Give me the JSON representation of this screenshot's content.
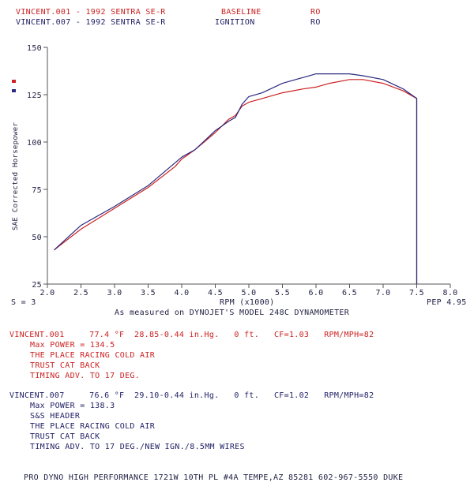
{
  "header": {
    "row1": {
      "file": "VINCENT.001 - 1992 SENTRA SE-R",
      "label": "BASELINE",
      "code": "RO"
    },
    "row2": {
      "file": "VINCENT.007 - 1992 SENTRA SE-R",
      "label": "IGNITION",
      "code": "RO"
    }
  },
  "chart_data": {
    "type": "line",
    "ylabel": "SAE Corrected Horsepower",
    "xlabel": "RPM (x1000)",
    "xlim": [
      2.0,
      8.0
    ],
    "ylim": [
      25,
      150
    ],
    "xticks": [
      "2.0",
      "2.5",
      "3.0",
      "3.5",
      "4.0",
      "4.5",
      "5.0",
      "5.5",
      "6.0",
      "6.5",
      "7.0",
      "7.5",
      "8.0"
    ],
    "yticks": [
      "150",
      "125",
      "100",
      "75",
      "50",
      "25"
    ],
    "smoothing": "S = 3",
    "pep": "PEP 4.95",
    "series": [
      {
        "color": "#cc2222",
        "x": [
          2.1,
          2.5,
          3.0,
          3.5,
          3.9,
          4.0,
          4.2,
          4.5,
          4.7,
          4.8,
          4.9,
          5.0,
          5.2,
          5.5,
          5.8,
          6.0,
          6.2,
          6.5,
          6.7,
          7.0,
          7.3,
          7.5,
          7.5
        ],
        "y": [
          43,
          54,
          65,
          76,
          87,
          91,
          96,
          105,
          112,
          114,
          119,
          121,
          123,
          126,
          128,
          129,
          131,
          133,
          133,
          131,
          127,
          123,
          22
        ]
      },
      {
        "color": "#2a2a80",
        "x": [
          2.1,
          2.5,
          3.0,
          3.5,
          3.9,
          4.0,
          4.2,
          4.5,
          4.7,
          4.8,
          4.9,
          5.0,
          5.2,
          5.5,
          5.8,
          6.0,
          6.2,
          6.5,
          6.7,
          7.0,
          7.3,
          7.5,
          7.5
        ],
        "y": [
          43,
          56,
          66,
          77,
          89,
          92,
          96,
          106,
          111,
          113,
          120,
          124,
          126,
          131,
          134,
          136,
          136,
          136,
          135,
          133,
          128,
          123,
          22
        ]
      }
    ]
  },
  "caption": "As measured on DYNOJET'S MODEL 248C DYNAMOMETER",
  "run1": {
    "line": "VINCENT.001     77.4 °F  28.85-0.44 in.Hg.   0 ft.   CF=1.03   RPM/MPH=82",
    "details": [
      "Max POWER = 134.5",
      "THE PLACE RACING COLD AIR",
      "TRUST CAT BACK",
      "TIMING ADV. TO 17 DEG."
    ]
  },
  "run2": {
    "line": "VINCENT.007     76.6 °F  29.10-0.44 in.Hg.   0 ft.   CF=1.02   RPM/MPH=82",
    "details": [
      "Max POWER = 138.3",
      "S&S HEADER",
      "THE PLACE RACING COLD AIR",
      "TRUST CAT BACK",
      "TIMING ADV. TO 17 DEG./NEW IGN./8.5MM WIRES"
    ]
  },
  "footer": "PRO DYNO HIGH PERFORMANCE 1721W 10TH PL #4A TEMPE,AZ 85281 602-967-5550 DUKE",
  "colors": {
    "baseline": "#cc2222",
    "ignition": "#2a2a80"
  }
}
